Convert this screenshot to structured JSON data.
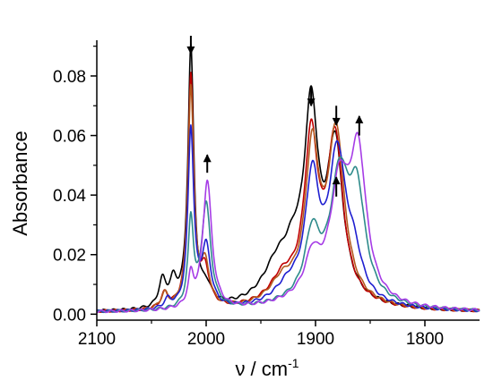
{
  "chart_data": {
    "type": "line",
    "title": "",
    "xlabel": "ν / cm",
    "xlabel_superscript": "-1",
    "ylabel": "Absorbance",
    "xlim": [
      2100,
      1750
    ],
    "ylim": [
      -0.002,
      0.092
    ],
    "x_reversed": true,
    "x_ticks": [
      2100,
      2000,
      1900,
      1800
    ],
    "x_tick_labels": [
      "2100",
      "2000",
      "1900",
      "1800"
    ],
    "y_ticks": [
      0.0,
      0.02,
      0.04,
      0.06,
      0.08
    ],
    "y_tick_labels": [
      "0.00",
      "0.02",
      "0.04",
      "0.06",
      "0.08"
    ],
    "grid": false,
    "legend": "none",
    "colors": [
      "#000000",
      "#c00000",
      "#b35a1f",
      "#1f1fd0",
      "#2e8b8b",
      "#a63ce6"
    ],
    "series": [
      {
        "color": "#000000",
        "bands": [
          [
            2040,
            0.009,
            4
          ],
          [
            2030,
            0.008,
            4
          ],
          [
            2014,
            0.087,
            3.2
          ],
          [
            2000,
            0.006,
            6
          ],
          [
            1935,
            0.012,
            16
          ],
          [
            1920,
            0.01,
            10
          ],
          [
            1904,
            0.06,
            7.5
          ],
          [
            1882,
            0.05,
            8.5
          ],
          [
            1900,
            0.004,
            40
          ]
        ]
      },
      {
        "color": "#c00000",
        "bands": [
          [
            2038,
            0.005,
            4
          ],
          [
            2014,
            0.078,
            3.2
          ],
          [
            2001,
            0.012,
            5
          ],
          [
            1930,
            0.008,
            14
          ],
          [
            1904,
            0.052,
            7.5
          ],
          [
            1882,
            0.053,
            8.5
          ],
          [
            1895,
            0.004,
            40
          ]
        ]
      },
      {
        "color": "#b35a1f",
        "bands": [
          [
            2038,
            0.005,
            4
          ],
          [
            2014,
            0.074,
            3.2
          ],
          [
            2001,
            0.014,
            5
          ],
          [
            1930,
            0.007,
            14
          ],
          [
            1903,
            0.048,
            7.5
          ],
          [
            1881,
            0.055,
            9
          ],
          [
            1895,
            0.004,
            40
          ]
        ]
      },
      {
        "color": "#1f1fd0",
        "bands": [
          [
            2035,
            0.003,
            4
          ],
          [
            2014,
            0.06,
            3.2
          ],
          [
            2000,
            0.02,
            5
          ],
          [
            1925,
            0.005,
            14
          ],
          [
            1903,
            0.038,
            7.5
          ],
          [
            1880,
            0.047,
            9.5
          ],
          [
            1865,
            0.012,
            9
          ],
          [
            1895,
            0.004,
            40
          ]
        ]
      },
      {
        "color": "#2e8b8b",
        "bands": [
          [
            2014,
            0.029,
            3
          ],
          [
            2000,
            0.035,
            5
          ],
          [
            1903,
            0.02,
            8
          ],
          [
            1878,
            0.038,
            10
          ],
          [
            1862,
            0.033,
            9
          ],
          [
            1890,
            0.005,
            40
          ]
        ]
      },
      {
        "color": "#a63ce6",
        "bands": [
          [
            2014,
            0.01,
            3
          ],
          [
            1999,
            0.043,
            5
          ],
          [
            1903,
            0.012,
            8
          ],
          [
            1878,
            0.035,
            10
          ],
          [
            1861,
            0.047,
            9
          ],
          [
            1890,
            0.005,
            40
          ]
        ]
      }
    ],
    "annotations": [
      {
        "type": "arrow-down",
        "x": 2014,
        "y_tail": 0.0935,
        "y_head": 0.0875
      },
      {
        "type": "arrow-up",
        "x": 1999,
        "y_tail": 0.0475,
        "y_head": 0.0535
      },
      {
        "type": "arrow-down",
        "x": 1904,
        "y_tail": 0.0765,
        "y_head": 0.07
      },
      {
        "type": "arrow-down",
        "x": 1881,
        "y_tail": 0.07,
        "y_head": 0.0635
      },
      {
        "type": "arrow-up",
        "x": 1881,
        "y_tail": 0.0395,
        "y_head": 0.046
      },
      {
        "type": "arrow-up",
        "x": 1860,
        "y_tail": 0.06,
        "y_head": 0.0665
      }
    ]
  }
}
